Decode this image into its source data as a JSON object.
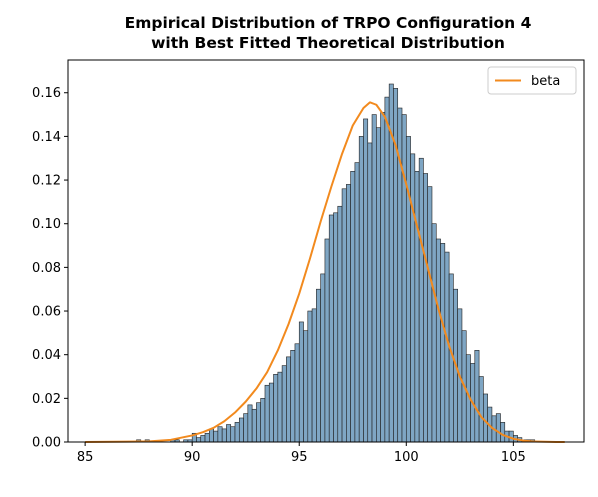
{
  "chart_data": {
    "type": "bar",
    "title_lines": [
      "Empirical Distribution of TRPO Configuration 4",
      "with Best Fitted Theoretical Distribution"
    ],
    "xlabel": "",
    "ylabel": "",
    "xlim": [
      84.2,
      108.3
    ],
    "ylim": [
      0,
      0.175
    ],
    "xticks": [
      85,
      90,
      95,
      100,
      105
    ],
    "yticks": [
      0.0,
      0.02,
      0.04,
      0.06,
      0.08,
      0.1,
      0.12,
      0.14,
      0.16
    ],
    "ytick_labels": [
      "0.00",
      "0.02",
      "0.04",
      "0.06",
      "0.08",
      "0.10",
      "0.12",
      "0.14",
      "0.16"
    ],
    "grid": false,
    "histogram": {
      "bin_width": 0.2,
      "bar_color": "#7fa6c4",
      "edge_color": "#1f1f1f",
      "bins": [
        [
          87.4,
          0.001
        ],
        [
          87.6,
          0.0
        ],
        [
          87.8,
          0.001
        ],
        [
          88.0,
          0.0
        ],
        [
          88.2,
          0.0
        ],
        [
          88.4,
          0.0
        ],
        [
          88.6,
          0.0
        ],
        [
          88.8,
          0.0
        ],
        [
          89.0,
          0.001
        ],
        [
          89.2,
          0.001
        ],
        [
          89.4,
          0.0
        ],
        [
          89.6,
          0.001
        ],
        [
          89.8,
          0.001
        ],
        [
          90.0,
          0.004
        ],
        [
          90.2,
          0.002
        ],
        [
          90.4,
          0.003
        ],
        [
          90.6,
          0.004
        ],
        [
          90.8,
          0.006
        ],
        [
          91.0,
          0.005
        ],
        [
          91.2,
          0.007
        ],
        [
          91.4,
          0.006
        ],
        [
          91.6,
          0.008
        ],
        [
          91.8,
          0.007
        ],
        [
          92.0,
          0.009
        ],
        [
          92.2,
          0.011
        ],
        [
          92.4,
          0.013
        ],
        [
          92.6,
          0.017
        ],
        [
          92.8,
          0.015
        ],
        [
          93.0,
          0.018
        ],
        [
          93.2,
          0.02
        ],
        [
          93.4,
          0.026
        ],
        [
          93.6,
          0.027
        ],
        [
          93.8,
          0.031
        ],
        [
          94.0,
          0.032
        ],
        [
          94.2,
          0.035
        ],
        [
          94.4,
          0.039
        ],
        [
          94.6,
          0.042
        ],
        [
          94.8,
          0.045
        ],
        [
          95.0,
          0.055
        ],
        [
          95.2,
          0.051
        ],
        [
          95.4,
          0.06
        ],
        [
          95.6,
          0.061
        ],
        [
          95.8,
          0.07
        ],
        [
          96.0,
          0.077
        ],
        [
          96.2,
          0.093
        ],
        [
          96.4,
          0.104
        ],
        [
          96.6,
          0.105
        ],
        [
          96.8,
          0.108
        ],
        [
          97.0,
          0.116
        ],
        [
          97.2,
          0.118
        ],
        [
          97.4,
          0.124
        ],
        [
          97.6,
          0.128
        ],
        [
          97.8,
          0.14
        ],
        [
          98.0,
          0.148
        ],
        [
          98.2,
          0.137
        ],
        [
          98.4,
          0.15
        ],
        [
          98.6,
          0.144
        ],
        [
          98.8,
          0.151
        ],
        [
          99.0,
          0.158
        ],
        [
          99.2,
          0.164
        ],
        [
          99.4,
          0.162
        ],
        [
          99.6,
          0.153
        ],
        [
          99.8,
          0.15
        ],
        [
          100.0,
          0.14
        ],
        [
          100.2,
          0.132
        ],
        [
          100.4,
          0.124
        ],
        [
          100.6,
          0.13
        ],
        [
          100.8,
          0.123
        ],
        [
          101.0,
          0.117
        ],
        [
          101.2,
          0.1
        ],
        [
          101.4,
          0.093
        ],
        [
          101.6,
          0.091
        ],
        [
          101.8,
          0.087
        ],
        [
          102.0,
          0.077
        ],
        [
          102.2,
          0.07
        ],
        [
          102.4,
          0.061
        ],
        [
          102.6,
          0.051
        ],
        [
          102.8,
          0.04
        ],
        [
          103.0,
          0.036
        ],
        [
          103.2,
          0.042
        ],
        [
          103.4,
          0.03
        ],
        [
          103.6,
          0.022
        ],
        [
          103.8,
          0.016
        ],
        [
          104.0,
          0.012
        ],
        [
          104.2,
          0.013
        ],
        [
          104.4,
          0.009
        ],
        [
          104.6,
          0.005
        ],
        [
          104.8,
          0.005
        ],
        [
          105.0,
          0.003
        ],
        [
          105.2,
          0.002
        ],
        [
          105.4,
          0.001
        ],
        [
          105.6,
          0.001
        ],
        [
          105.8,
          0.001
        ]
      ]
    },
    "fitted_curve": {
      "name": "beta",
      "color": "#f28a1e",
      "x": [
        85.0,
        88.0,
        89.0,
        90.0,
        90.5,
        91.0,
        91.5,
        92.0,
        92.5,
        93.0,
        93.5,
        94.0,
        94.5,
        95.0,
        95.5,
        96.0,
        96.5,
        97.0,
        97.5,
        98.0,
        98.3,
        98.6,
        99.0,
        99.5,
        100.0,
        100.5,
        101.0,
        101.5,
        102.0,
        102.5,
        103.0,
        103.5,
        104.0,
        104.5,
        105.0,
        105.5,
        106.0,
        106.5,
        107.0,
        107.4
      ],
      "y": [
        0.0,
        0.0003,
        0.001,
        0.003,
        0.0045,
        0.0065,
        0.0095,
        0.0135,
        0.0185,
        0.0245,
        0.032,
        0.042,
        0.054,
        0.068,
        0.084,
        0.101,
        0.117,
        0.132,
        0.145,
        0.153,
        0.1556,
        0.1545,
        0.149,
        0.136,
        0.118,
        0.099,
        0.08,
        0.061,
        0.044,
        0.03,
        0.0195,
        0.0115,
        0.0065,
        0.0033,
        0.0015,
        0.0006,
        0.0002,
        0.0001,
        0.0,
        0.0
      ]
    },
    "legend": {
      "position": "top-right",
      "entries": [
        {
          "label": "beta",
          "color": "#f28a1e"
        }
      ]
    }
  }
}
